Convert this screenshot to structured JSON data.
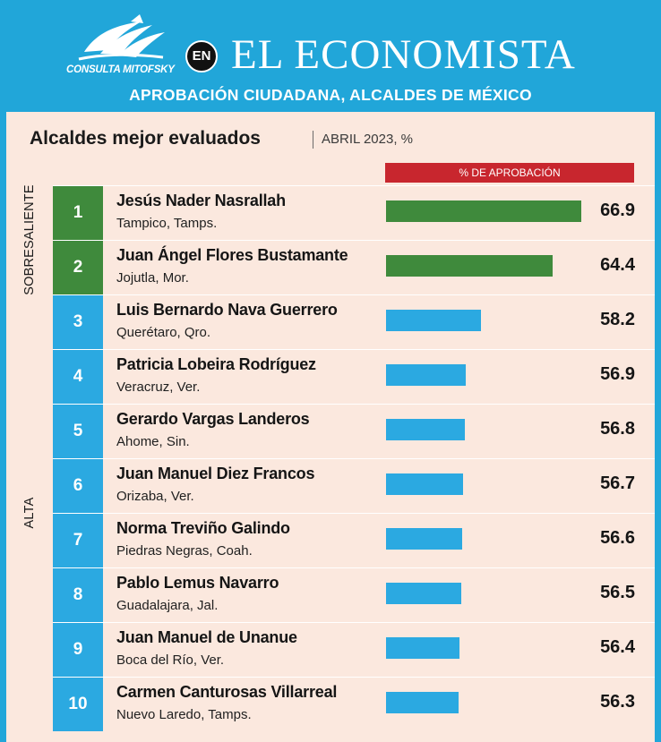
{
  "header": {
    "logo_text": "CONSULTA MITOFSKY",
    "connector": "EN",
    "publication": "EL ECONOMISTA",
    "subtitle": "APROBACIÓN CIUDADANA, ALCALDES DE MÉXICO"
  },
  "panel": {
    "title": "Alcaldes mejor evaluados",
    "period": "ABRIL 2023, %",
    "column_header": "% DE APROBACIÓN"
  },
  "colors": {
    "background": "#21a6d9",
    "panel": "#fbe8de",
    "sobresaliente": "#3f8a3c",
    "alta": "#2ba9e1",
    "header_bar": "#c8262e"
  },
  "chart_data": {
    "type": "bar",
    "orientation": "horizontal",
    "title": "Alcaldes mejor evaluados",
    "subtitle": "ABRIL 2023, %",
    "value_label": "% DE APROBACIÓN",
    "categories": [
      {
        "label": "SOBRESALIENTE",
        "ranks": [
          1,
          2
        ]
      },
      {
        "label": "ALTA",
        "ranks": [
          3,
          4,
          5,
          6,
          7,
          8,
          9,
          10
        ]
      }
    ],
    "rows": [
      {
        "rank": "1",
        "name": "Jesús Nader Nasrallah",
        "city": "Tampico, Tamps.",
        "value": 66.9,
        "value_label": "66.9"
      },
      {
        "rank": "2",
        "name": "Juan Ángel Flores Bustamante",
        "city": "Jojutla, Mor.",
        "value": 64.4,
        "value_label": "64.4"
      },
      {
        "rank": "3",
        "name": "Luis Bernardo Nava Guerrero",
        "city": "Querétaro, Qro.",
        "value": 58.2,
        "value_label": "58.2"
      },
      {
        "rank": "4",
        "name": "Patricia Lobeira Rodríguez",
        "city": "Veracruz, Ver.",
        "value": 56.9,
        "value_label": "56.9"
      },
      {
        "rank": "5",
        "name": "Gerardo Vargas Landeros",
        "city": "Ahome, Sin.",
        "value": 56.8,
        "value_label": "56.8"
      },
      {
        "rank": "6",
        "name": "Juan Manuel Diez Francos",
        "city": "Orizaba, Ver.",
        "value": 56.7,
        "value_label": "56.7"
      },
      {
        "rank": "7",
        "name": "Norma Treviño Galindo",
        "city": "Piedras Negras, Coah.",
        "value": 56.6,
        "value_label": "56.6"
      },
      {
        "rank": "8",
        "name": "Pablo Lemus Navarro",
        "city": "Guadalajara, Jal.",
        "value": 56.5,
        "value_label": "56.5"
      },
      {
        "rank": "9",
        "name": "Juan Manuel de Unanue",
        "city": "Boca del Río, Ver.",
        "value": 56.4,
        "value_label": "56.4"
      },
      {
        "rank": "10",
        "name": "Carmen Canturosas Villarreal",
        "city": "Nuevo Laredo, Tamps.",
        "value": 56.3,
        "value_label": "56.3"
      }
    ],
    "xlim": [
      50,
      67
    ]
  }
}
